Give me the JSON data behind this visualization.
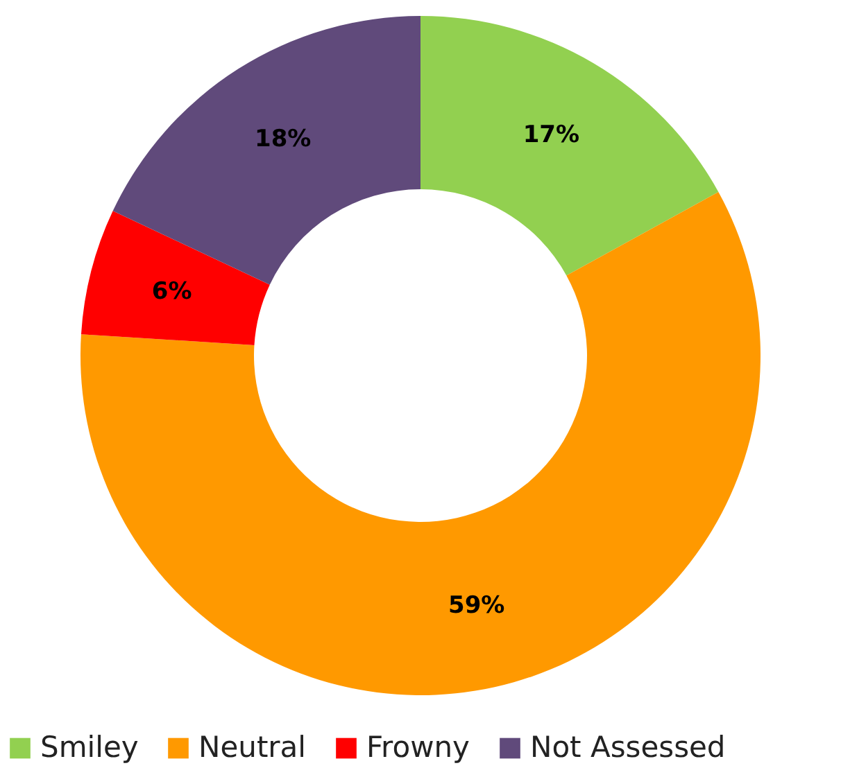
{
  "chart_data": {
    "type": "donut",
    "categories": [
      "Smiley",
      "Neutral",
      "Frowny",
      "Not Assessed"
    ],
    "values": [
      17,
      59,
      6,
      18
    ],
    "colors": [
      "#92d050",
      "#ff9900",
      "#ff0000",
      "#604a7b"
    ],
    "value_labels": [
      "17%",
      "59%",
      "6%",
      "18%"
    ],
    "legend": "bottom"
  }
}
